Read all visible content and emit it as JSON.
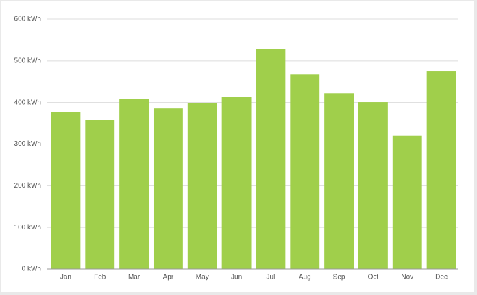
{
  "chart_data": {
    "type": "bar",
    "categories": [
      "Jan",
      "Feb",
      "Mar",
      "Apr",
      "May",
      "Jun",
      "Jul",
      "Aug",
      "Sep",
      "Oct",
      "Nov",
      "Dec"
    ],
    "values": [
      378,
      358,
      408,
      386,
      398,
      413,
      528,
      468,
      422,
      401,
      321,
      475
    ],
    "color": "#a0cf4b",
    "ylim": [
      0,
      600
    ],
    "yticks": [
      {
        "value": 0,
        "label": "0 kWh"
      },
      {
        "value": 100,
        "label": "100 kWh"
      },
      {
        "value": 200,
        "label": "200 kWh"
      },
      {
        "value": 300,
        "label": "300 kWh"
      },
      {
        "value": 400,
        "label": "400 kWh"
      },
      {
        "value": 500,
        "label": "500 kWh"
      },
      {
        "value": 600,
        "label": "600 kWh"
      }
    ],
    "grid": true
  }
}
